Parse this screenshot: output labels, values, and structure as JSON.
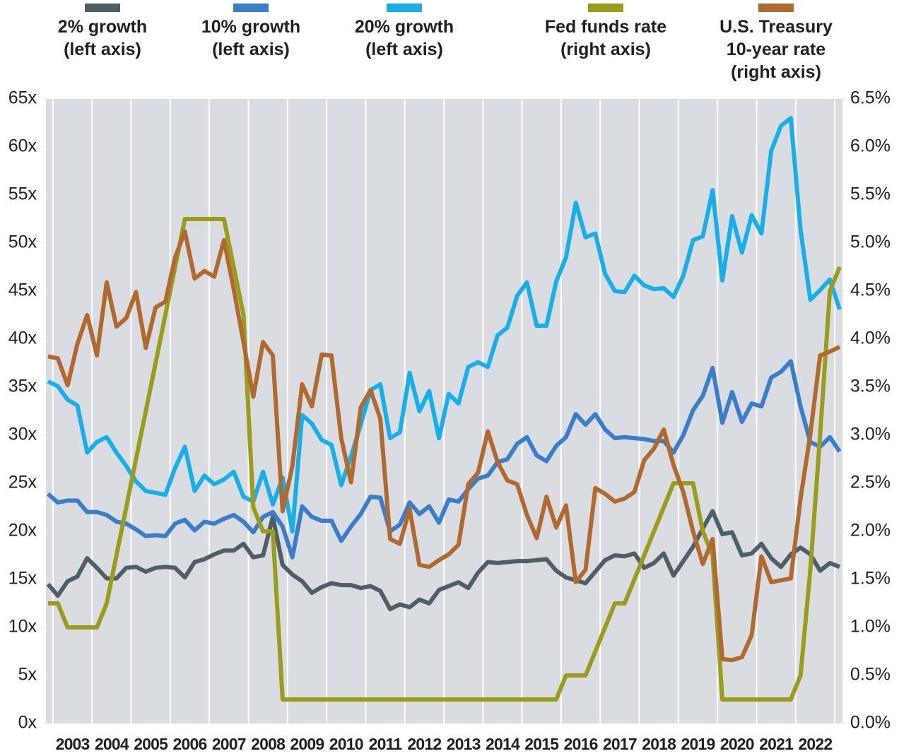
{
  "chart_data": {
    "type": "line",
    "categories": [
      null,
      null,
      "2003",
      null,
      null,
      null,
      "2004",
      null,
      null,
      null,
      "2005",
      null,
      null,
      null,
      "2006",
      null,
      null,
      null,
      "2007",
      null,
      null,
      null,
      "2008",
      null,
      null,
      null,
      "2009",
      null,
      null,
      null,
      "2010",
      null,
      null,
      null,
      "2011",
      null,
      null,
      null,
      "2012",
      null,
      null,
      null,
      "2013",
      null,
      null,
      null,
      "2014",
      null,
      null,
      null,
      "2015",
      null,
      null,
      null,
      "2016",
      null,
      null,
      null,
      "2017",
      null,
      null,
      null,
      "2018",
      null,
      null,
      null,
      "2019",
      null,
      null,
      null,
      "2020",
      null,
      null,
      null,
      "2021",
      null,
      null,
      null,
      "2022",
      null,
      null,
      null
    ],
    "series": [
      {
        "name": "2% growth\n(left axis)",
        "color": "#4f5f66",
        "values": [
          14.5,
          13.3,
          14.8,
          15.3,
          17.2,
          16.2,
          15.1,
          15.1,
          16.2,
          16.3,
          15.8,
          16.2,
          16.3,
          16.2,
          15.2,
          16.8,
          17.1,
          17.6,
          18.0,
          18.0,
          18.7,
          17.3,
          17.5,
          21.5,
          16.5,
          15.5,
          14.8,
          13.6,
          14.2,
          14.6,
          14.4,
          14.4,
          14.1,
          14.3,
          13.8,
          11.9,
          12.4,
          12.1,
          12.9,
          12.5,
          13.9,
          14.3,
          14.7,
          14.1,
          15.7,
          16.8,
          16.7,
          16.8,
          16.9,
          16.9,
          17.0,
          17.1,
          15.9,
          15.2,
          14.9,
          14.6,
          15.8,
          17.0,
          17.5,
          17.4,
          17.7,
          16.2,
          16.7,
          17.7,
          15.4,
          16.9,
          18.4,
          20.3,
          22.1,
          19.7,
          19.9,
          17.5,
          17.7,
          18.7,
          17.2,
          16.3,
          17.6,
          18.3,
          17.6,
          15.9,
          16.7,
          16.3
        ]
      },
      {
        "name": "10% growth\n(left axis)",
        "color": "#3a7dc9",
        "values": [
          23.9,
          23.0,
          23.2,
          23.2,
          22.0,
          22.0,
          21.7,
          21.0,
          20.8,
          20.2,
          19.5,
          19.6,
          19.5,
          20.8,
          21.2,
          20.1,
          21.0,
          20.8,
          21.3,
          21.7,
          21.0,
          19.9,
          21.5,
          22.0,
          20.5,
          17.3,
          22.6,
          21.5,
          21.1,
          21.1,
          19.0,
          20.5,
          21.8,
          23.6,
          23.5,
          20.0,
          20.7,
          23.0,
          21.8,
          22.6,
          20.9,
          23.3,
          23.1,
          24.4,
          25.5,
          25.8,
          27.2,
          27.5,
          29.1,
          29.8,
          27.9,
          27.3,
          28.9,
          29.8,
          32.2,
          31.1,
          32.2,
          30.6,
          29.7,
          29.8,
          29.7,
          29.6,
          29.4,
          29.4,
          28.2,
          30.0,
          32.6,
          34.1,
          37.0,
          31.3,
          34.5,
          31.4,
          33.3,
          33.0,
          36.0,
          36.6,
          37.7,
          33.0,
          29.3,
          28.8,
          29.8,
          28.3
        ]
      },
      {
        "name": "20% growth\n(left axis)",
        "color": "#18aee8",
        "values": [
          35.6,
          35.1,
          33.7,
          33.1,
          28.2,
          29.3,
          29.8,
          28.2,
          26.8,
          25.2,
          24.2,
          24.0,
          23.8,
          26.6,
          28.8,
          24.2,
          25.8,
          24.9,
          25.4,
          26.2,
          23.6,
          23.1,
          26.2,
          22.8,
          25.6,
          20.0,
          32.1,
          31.2,
          29.5,
          29.0,
          24.8,
          27.8,
          31.1,
          34.7,
          35.3,
          29.7,
          30.3,
          36.5,
          32.5,
          34.6,
          29.7,
          34.3,
          33.3,
          37.1,
          37.6,
          37.1,
          40.4,
          41.2,
          44.5,
          45.9,
          41.4,
          41.4,
          46.0,
          48.5,
          54.2,
          50.6,
          51.0,
          46.8,
          45.0,
          44.9,
          46.6,
          45.6,
          45.2,
          45.3,
          44.4,
          46.6,
          50.3,
          50.7,
          55.5,
          46.1,
          52.8,
          49.0,
          52.9,
          51.0,
          59.6,
          62.2,
          63.0,
          51.4,
          44.1,
          45.1,
          46.2,
          43.1
        ]
      },
      {
        "name": "Fed funds rate\n(right axis)",
        "color": "#9a9d1c",
        "axis": "y2",
        "values": [
          1.25,
          1.25,
          1.0,
          1.0,
          1.0,
          1.0,
          1.25,
          1.75,
          2.25,
          2.75,
          3.25,
          3.75,
          4.25,
          4.75,
          5.25,
          5.25,
          5.25,
          5.25,
          5.25,
          4.75,
          4.25,
          2.25,
          2.0,
          2.0,
          0.25,
          0.25,
          0.25,
          0.25,
          0.25,
          0.25,
          0.25,
          0.25,
          0.25,
          0.25,
          0.25,
          0.25,
          0.25,
          0.25,
          0.25,
          0.25,
          0.25,
          0.25,
          0.25,
          0.25,
          0.25,
          0.25,
          0.25,
          0.25,
          0.25,
          0.25,
          0.25,
          0.25,
          0.25,
          0.5,
          0.5,
          0.5,
          0.75,
          1.0,
          1.25,
          1.25,
          1.5,
          1.75,
          2.0,
          2.25,
          2.5,
          2.5,
          2.5,
          2.0,
          1.75,
          0.25,
          0.25,
          0.25,
          0.25,
          0.25,
          0.25,
          0.25,
          0.25,
          0.5,
          1.6,
          3.0,
          4.5,
          4.75
        ]
      },
      {
        "name": "U.S. Treasury\n10-year rate\n(right axis)",
        "color": "#b0692e",
        "axis": "y2",
        "values": [
          3.82,
          3.8,
          3.52,
          3.95,
          4.25,
          3.83,
          4.59,
          4.13,
          4.22,
          4.49,
          3.91,
          4.33,
          4.39,
          4.85,
          5.12,
          4.63,
          4.71,
          4.65,
          5.03,
          4.52,
          3.97,
          3.4,
          3.97,
          3.83,
          2.21,
          2.68,
          3.53,
          3.3,
          3.84,
          3.83,
          2.97,
          2.51,
          3.29,
          3.47,
          3.17,
          1.92,
          1.87,
          2.23,
          1.65,
          1.63,
          1.7,
          1.76,
          1.86,
          2.49,
          2.61,
          3.04,
          2.72,
          2.53,
          2.49,
          2.17,
          1.93,
          2.36,
          2.04,
          2.27,
          1.47,
          1.6,
          2.45,
          2.39,
          2.31,
          2.34,
          2.41,
          2.74,
          2.86,
          3.06,
          2.69,
          2.41,
          2.0,
          1.66,
          1.92,
          0.67,
          0.66,
          0.69,
          0.92,
          1.74,
          1.47,
          1.49,
          1.51,
          2.34,
          3.01,
          3.83,
          3.87,
          3.92
        ]
      }
    ],
    "ylim": [
      0,
      65
    ],
    "yticks": [
      {
        "value": 0,
        "label": "0x"
      },
      {
        "value": 5,
        "label": "5x"
      },
      {
        "value": 10,
        "label": "10x"
      },
      {
        "value": 15,
        "label": "15x"
      },
      {
        "value": 20,
        "label": "20x"
      },
      {
        "value": 25,
        "label": "25x"
      },
      {
        "value": 30,
        "label": "30x"
      },
      {
        "value": 35,
        "label": "35x"
      },
      {
        "value": 40,
        "label": "40x"
      },
      {
        "value": 45,
        "label": "45x"
      },
      {
        "value": 50,
        "label": "50x"
      },
      {
        "value": 55,
        "label": "55x"
      },
      {
        "value": 60,
        "label": "60x"
      },
      {
        "value": 65,
        "label": "65x"
      }
    ],
    "y2lim": [
      0,
      6.5
    ],
    "y2ticks": [
      {
        "value": 0,
        "label": "0.0%"
      },
      {
        "value": 0.5,
        "label": "0.5%"
      },
      {
        "value": 1,
        "label": "1.0%"
      },
      {
        "value": 1.5,
        "label": "1.5%"
      },
      {
        "value": 2,
        "label": "2.0%"
      },
      {
        "value": 2.5,
        "label": "2.5%"
      },
      {
        "value": 3,
        "label": "3.0%"
      },
      {
        "value": 3.5,
        "label": "3.5%"
      },
      {
        "value": 4,
        "label": "4.0%"
      },
      {
        "value": 4.5,
        "label": "4.5%"
      },
      {
        "value": 5,
        "label": "5.0%"
      },
      {
        "value": 5.5,
        "label": "5.5%"
      },
      {
        "value": 6,
        "label": "6.0%"
      },
      {
        "value": 6.5,
        "label": "6.5%"
      }
    ]
  }
}
